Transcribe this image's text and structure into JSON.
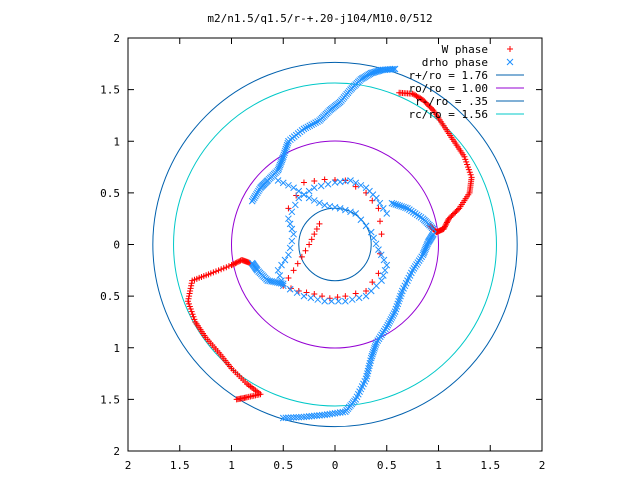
{
  "chart_data": {
    "type": "scatter",
    "title": "m2/n1.5/q1.5/r-+.20-j104/M10.0/512",
    "xlim": [
      -2,
      2
    ],
    "ylim": [
      -2,
      2
    ],
    "x_ticks": [
      "2",
      "1.5",
      "1",
      "0.5",
      "0",
      "0.5",
      "1",
      "1.5",
      "2"
    ],
    "y_ticks": [
      "2",
      "1.5",
      "1",
      "0.5",
      "0",
      "0.5",
      "1",
      "1.5",
      "2"
    ],
    "legend_position": "top-right",
    "grid": false,
    "series": [
      {
        "name": "W phase",
        "kind": "points",
        "marker": "plus",
        "color": "#ff0000"
      },
      {
        "name": "drho phase",
        "kind": "points",
        "marker": "cross",
        "color": "#1e90ff"
      },
      {
        "name": "r+/ro = 1.76",
        "kind": "circle",
        "radius": 1.76,
        "color": "#0060ad"
      },
      {
        "name": "ro/ro = 1.00",
        "kind": "circle",
        "radius": 1.0,
        "color": "#9400d3"
      },
      {
        "name": "r-/ro = .35",
        "kind": "circle",
        "radius": 0.35,
        "color": "#0060ad"
      },
      {
        "name": "rc/ro = 1.56",
        "kind": "circle",
        "radius": 1.56,
        "color": "#00c8c8"
      }
    ],
    "points": {
      "drho_outer_arm_1": [
        [
          0.58,
          1.7
        ],
        [
          0.45,
          1.69
        ],
        [
          0.35,
          1.66
        ],
        [
          0.25,
          1.6
        ],
        [
          0.15,
          1.5
        ],
        [
          0.05,
          1.38
        ],
        [
          -0.05,
          1.3
        ],
        [
          -0.15,
          1.2
        ],
        [
          -0.3,
          1.12
        ],
        [
          -0.45,
          1.0
        ],
        [
          -0.5,
          0.85
        ],
        [
          -0.55,
          0.72
        ],
        [
          -0.65,
          0.62
        ],
        [
          -0.72,
          0.55
        ],
        [
          -0.8,
          0.42
        ]
      ],
      "drho_outer_arm_2": [
        [
          0.95,
          0.1
        ],
        [
          0.9,
          0.02
        ],
        [
          0.85,
          -0.1
        ],
        [
          0.75,
          -0.25
        ],
        [
          0.65,
          -0.45
        ],
        [
          0.58,
          -0.65
        ],
        [
          0.5,
          -0.8
        ],
        [
          0.4,
          -0.95
        ],
        [
          0.35,
          -1.1
        ],
        [
          0.3,
          -1.3
        ],
        [
          0.2,
          -1.5
        ],
        [
          0.1,
          -1.62
        ],
        [
          -0.1,
          -1.65
        ],
        [
          -0.3,
          -1.67
        ],
        [
          -0.5,
          -1.68
        ]
      ],
      "drho_left_arm": [
        [
          -0.8,
          -0.18
        ],
        [
          -0.75,
          -0.25
        ],
        [
          -0.65,
          -0.35
        ],
        [
          -0.5,
          -0.38
        ]
      ],
      "drho_right_arm": [
        [
          0.55,
          0.4
        ],
        [
          0.7,
          0.35
        ],
        [
          0.85,
          0.25
        ],
        [
          0.95,
          0.15
        ]
      ],
      "drho_inner": [
        [
          -0.55,
          0.62
        ],
        [
          -0.4,
          0.55
        ],
        [
          -0.25,
          0.45
        ],
        [
          -0.1,
          0.38
        ],
        [
          0.05,
          0.35
        ],
        [
          0.2,
          0.3
        ],
        [
          0.35,
          0.12
        ],
        [
          0.42,
          -0.05
        ],
        [
          0.5,
          -0.2
        ],
        [
          0.45,
          -0.35
        ],
        [
          0.3,
          -0.5
        ],
        [
          0.1,
          -0.55
        ],
        [
          -0.1,
          -0.55
        ],
        [
          -0.3,
          -0.5
        ],
        [
          -0.5,
          -0.4
        ],
        [
          -0.55,
          -0.25
        ],
        [
          -0.45,
          -0.1
        ],
        [
          -0.4,
          0.1
        ],
        [
          -0.45,
          0.25
        ],
        [
          -0.35,
          0.45
        ],
        [
          -0.2,
          0.55
        ],
        [
          0.0,
          0.6
        ],
        [
          0.15,
          0.62
        ],
        [
          0.3,
          0.55
        ],
        [
          0.4,
          0.45
        ],
        [
          0.5,
          0.3
        ]
      ],
      "w_upper_right": [
        [
          0.62,
          1.47
        ],
        [
          0.75,
          1.46
        ],
        [
          0.85,
          1.4
        ],
        [
          0.95,
          1.3
        ],
        [
          1.05,
          1.15
        ],
        [
          1.15,
          1.0
        ],
        [
          1.25,
          0.85
        ],
        [
          1.32,
          0.65
        ],
        [
          1.3,
          0.5
        ],
        [
          1.2,
          0.35
        ],
        [
          1.1,
          0.25
        ],
        [
          1.05,
          0.15
        ],
        [
          0.98,
          0.12
        ],
        [
          0.92,
          0.18
        ]
      ],
      "w_lower_left": [
        [
          -0.95,
          -1.5
        ],
        [
          -0.85,
          -1.48
        ],
        [
          -0.72,
          -1.45
        ],
        [
          -0.85,
          -1.35
        ],
        [
          -1.0,
          -1.2
        ],
        [
          -1.12,
          -1.05
        ],
        [
          -1.25,
          -0.9
        ],
        [
          -1.35,
          -0.75
        ],
        [
          -1.42,
          -0.55
        ],
        [
          -1.38,
          -0.35
        ],
        [
          -1.2,
          -0.28
        ],
        [
          -1.0,
          -0.2
        ],
        [
          -0.9,
          -0.15
        ],
        [
          -0.82,
          -0.18
        ]
      ],
      "w_inner": [
        [
          -0.45,
          0.35
        ],
        [
          -0.3,
          0.6
        ],
        [
          -0.1,
          0.63
        ],
        [
          0.1,
          0.62
        ],
        [
          0.3,
          0.5
        ],
        [
          0.42,
          0.35
        ],
        [
          0.45,
          0.1
        ],
        [
          0.42,
          -0.28
        ],
        [
          0.3,
          -0.45
        ],
        [
          0.1,
          -0.5
        ],
        [
          -0.05,
          -0.52
        ],
        [
          -0.2,
          -0.48
        ],
        [
          -0.35,
          -0.45
        ],
        [
          -0.5,
          -0.4
        ],
        [
          -0.4,
          -0.25
        ],
        [
          -0.32,
          -0.12
        ],
        [
          -0.25,
          0.0
        ],
        [
          -0.2,
          0.1
        ],
        [
          -0.15,
          0.2
        ]
      ]
    }
  }
}
